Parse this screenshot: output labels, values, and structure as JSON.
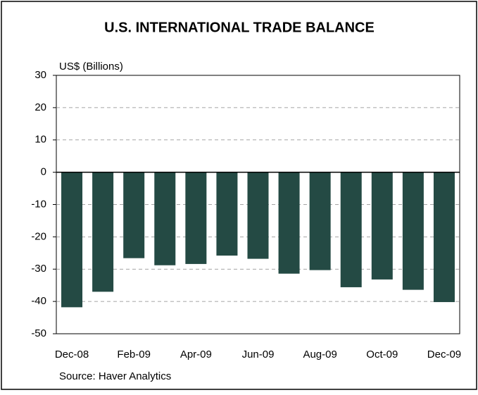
{
  "chart_data": {
    "type": "bar",
    "title": "U.S. INTERNATIONAL TRADE BALANCE",
    "y_label": "US$ (Billions)",
    "source": "Source: Haver Analytics",
    "categories": [
      "Dec-08",
      null,
      "Feb-09",
      null,
      "Apr-09",
      null,
      "Jun-09",
      null,
      "Aug-09",
      null,
      "Oct-09",
      null,
      "Dec-09"
    ],
    "values": [
      -41.8,
      -37.0,
      -26.6,
      -28.8,
      -28.4,
      -25.8,
      -26.8,
      -31.4,
      -30.3,
      -35.6,
      -33.2,
      -36.4,
      -40.2
    ],
    "color": "#244a44",
    "ylim": [
      -50,
      30
    ],
    "yticks": [
      -50,
      -40,
      -30,
      -20,
      -10,
      0,
      10,
      20,
      30
    ],
    "grid": true
  }
}
